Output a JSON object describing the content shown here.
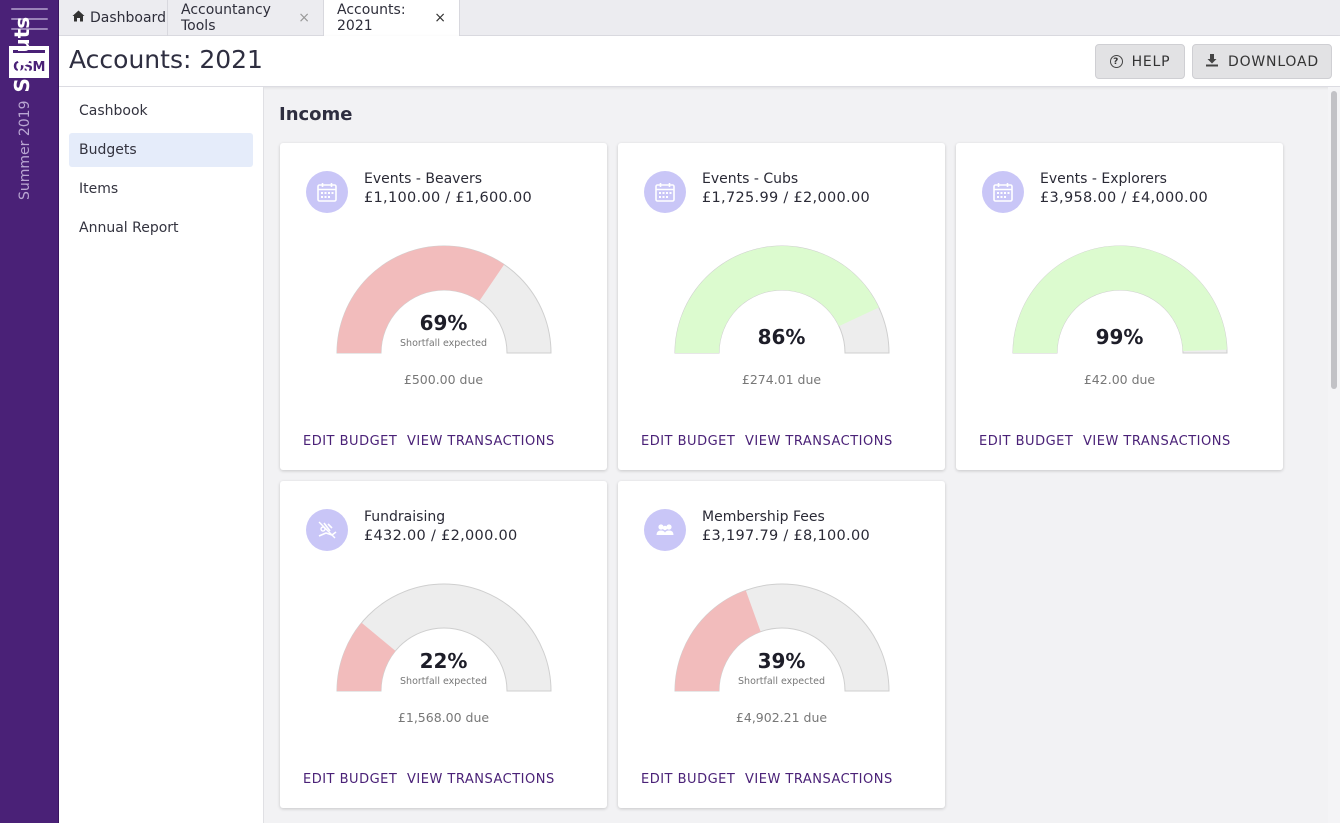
{
  "rail": {
    "logo_text": "OSM",
    "section_term": "Summer 2019",
    "section_name": "Scouts"
  },
  "tabs": [
    {
      "label": "Dashboard",
      "icon": "home-icon",
      "closable": false,
      "active": false
    },
    {
      "label": "Accountancy Tools",
      "closable": true,
      "active": false
    },
    {
      "label": "Accounts: 2021",
      "closable": true,
      "active": true
    }
  ],
  "header": {
    "title": "Accounts: 2021",
    "help_label": "HELP",
    "download_label": "DOWNLOAD"
  },
  "sidenav": {
    "items": [
      {
        "label": "Cashbook",
        "active": false
      },
      {
        "label": "Budgets",
        "active": true
      },
      {
        "label": "Items",
        "active": false
      },
      {
        "label": "Annual Report",
        "active": false
      }
    ]
  },
  "main": {
    "section_title": "Income",
    "edit_label": "EDIT BUDGET",
    "view_label": "VIEW TRANSACTIONS",
    "cards": [
      {
        "name": "Events - Beavers",
        "amount": "£1,100.00 / £1,600.00",
        "percent": 69,
        "percent_label": "69%",
        "status": "Shortfall expected",
        "due": "£500.00 due",
        "icon": "calendar-icon",
        "state": "shortfall"
      },
      {
        "name": "Events - Cubs",
        "amount": "£1,725.99 / £2,000.00",
        "percent": 86,
        "percent_label": "86%",
        "status": "",
        "due": "£274.01 due",
        "icon": "calendar-icon",
        "state": "ok"
      },
      {
        "name": "Events - Explorers",
        "amount": "£3,958.00 / £4,000.00",
        "percent": 99,
        "percent_label": "99%",
        "status": "",
        "due": "£42.00 due",
        "icon": "calendar-icon",
        "state": "ok"
      },
      {
        "name": "Fundraising",
        "amount": "£432.00 / £2,000.00",
        "percent": 22,
        "percent_label": "22%",
        "status": "Shortfall expected",
        "due": "£1,568.00 due",
        "icon": "fundraising-icon",
        "state": "shortfall"
      },
      {
        "name": "Membership Fees",
        "amount": "£3,197.79 / £8,100.00",
        "percent": 39,
        "percent_label": "39%",
        "status": "Shortfall expected",
        "due": "£4,902.21 due",
        "icon": "group-icon",
        "state": "shortfall"
      }
    ]
  },
  "colors": {
    "brand_purple": "#4a2177",
    "shortfall_fill": "#f2bcbc",
    "ok_fill": "#dcfbcf",
    "gauge_track": "#ededed",
    "icon_bg": "#c9c6f7"
  }
}
